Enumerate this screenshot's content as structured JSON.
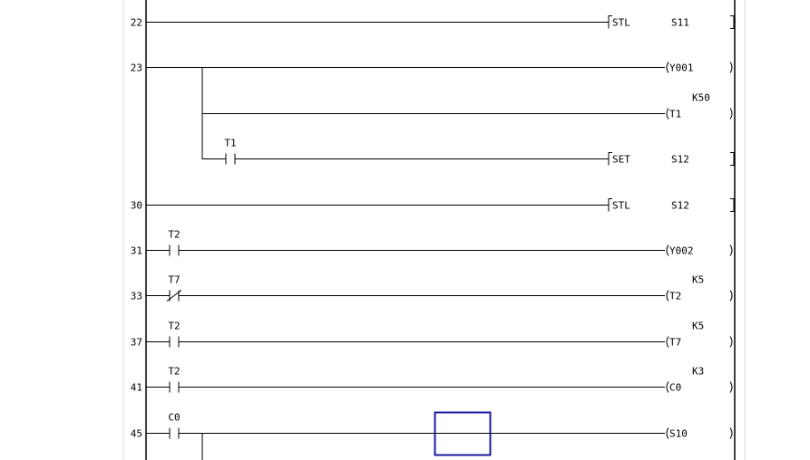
{
  "colors": {
    "line": "#000000",
    "frame": "#d8d8d8",
    "cursor": "#1a1aa0"
  },
  "rungs": [
    {
      "step": "22",
      "row": 0,
      "contacts": [],
      "output": {
        "type": "instruction",
        "op": "STL",
        "operand": "S11"
      }
    },
    {
      "step": "23",
      "row": 1,
      "contacts": [],
      "output": {
        "type": "coil",
        "device": "Y001"
      }
    },
    {
      "step": "",
      "row": 2,
      "branch": true,
      "contacts": [],
      "output": {
        "type": "coil",
        "device": "T1",
        "setting": "K50"
      }
    },
    {
      "step": "",
      "row": 3,
      "branch": true,
      "contacts": [
        {
          "device": "T1",
          "kind": "NO"
        }
      ],
      "output": {
        "type": "instruction",
        "op": "SET",
        "operand": "S12"
      }
    },
    {
      "step": "30",
      "row": 4,
      "contacts": [],
      "output": {
        "type": "instruction",
        "op": "STL",
        "operand": "S12"
      }
    },
    {
      "step": "31",
      "row": 5,
      "contacts": [
        {
          "device": "T2",
          "kind": "NO"
        }
      ],
      "output": {
        "type": "coil",
        "device": "Y002"
      }
    },
    {
      "step": "33",
      "row": 6,
      "contacts": [
        {
          "device": "T7",
          "kind": "NC"
        }
      ],
      "output": {
        "type": "coil",
        "device": "T2",
        "setting": "K5"
      }
    },
    {
      "step": "37",
      "row": 7,
      "contacts": [
        {
          "device": "T2",
          "kind": "NO"
        }
      ],
      "output": {
        "type": "coil",
        "device": "T7",
        "setting": "K5"
      }
    },
    {
      "step": "41",
      "row": 8,
      "contacts": [
        {
          "device": "T2",
          "kind": "NO"
        }
      ],
      "output": {
        "type": "coil",
        "device": "C0",
        "setting": "K3"
      }
    },
    {
      "step": "45",
      "row": 9,
      "contacts": [
        {
          "device": "C0",
          "kind": "NO"
        }
      ],
      "output": {
        "type": "coil",
        "device": "S10"
      },
      "branch_down": true
    }
  ]
}
